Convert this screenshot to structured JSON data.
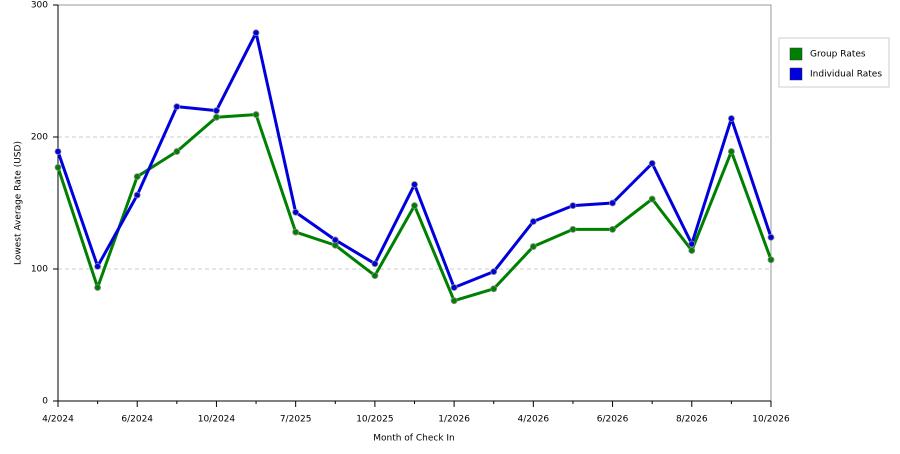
{
  "chart_data": {
    "type": "line",
    "x_label": "Month of Check In",
    "y_label": "Lowest Average Rate (USD)",
    "categories": [
      "4/2024",
      null,
      "6/2024",
      null,
      "10/2024",
      null,
      "7/2025",
      null,
      "10/2025",
      null,
      "1/2026",
      null,
      "4/2026",
      null,
      "6/2026",
      null,
      "8/2026",
      null,
      "10/2026"
    ],
    "series": [
      {
        "name": "Group Rates",
        "color": "#008000",
        "values": [
          177,
          86,
          170,
          189,
          215,
          217,
          128,
          118,
          95,
          148,
          76,
          85,
          117,
          130,
          130,
          153,
          114,
          189,
          107
        ]
      },
      {
        "name": "Individual Rates",
        "color": "#0000dd",
        "values": [
          189,
          102,
          156,
          223,
          220,
          279,
          143,
          122,
          104,
          164,
          86,
          98,
          136,
          148,
          150,
          180,
          119,
          214,
          124
        ]
      }
    ],
    "ylim": [
      0,
      300
    ],
    "yticks": [
      0,
      100,
      200,
      300
    ],
    "grid": true
  }
}
